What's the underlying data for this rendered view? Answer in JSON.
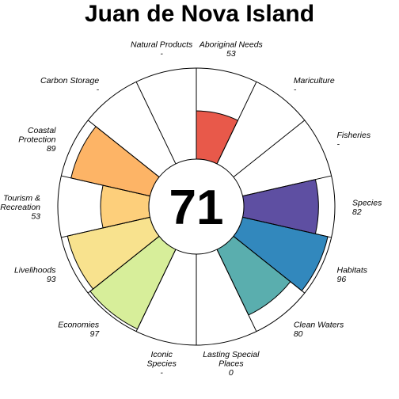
{
  "chart_data": {
    "type": "flower",
    "title": "Juan de Nova Island",
    "center_value": "71",
    "max_value": 100,
    "petals": [
      {
        "label": [
          "Natural Products"
        ],
        "value": null,
        "display": "-",
        "color": "#ffffff"
      },
      {
        "label": [
          "Aboriginal Needs"
        ],
        "value": 53,
        "display": "53",
        "color": "#e8594a"
      },
      {
        "label": [
          "Mariculture"
        ],
        "value": null,
        "display": "-",
        "color": "#ffffff"
      },
      {
        "label": [
          "Fisheries"
        ],
        "value": null,
        "display": "-",
        "color": "#ffffff"
      },
      {
        "label": [
          "Species"
        ],
        "value": 82,
        "display": "82",
        "color": "#5e4fa2"
      },
      {
        "label": [
          "Habitats"
        ],
        "value": 96,
        "display": "96",
        "color": "#3288bd"
      },
      {
        "label": [
          "Clean Waters"
        ],
        "value": 80,
        "display": "80",
        "color": "#5aaeae"
      },
      {
        "label": [
          "Lasting Special",
          "Places"
        ],
        "value": 0,
        "display": "0",
        "color": "#ffffff"
      },
      {
        "label": [
          "Iconic",
          "Species"
        ],
        "value": null,
        "display": "-",
        "color": "#ffffff"
      },
      {
        "label": [
          "Economies"
        ],
        "value": 97,
        "display": "97",
        "color": "#d7ee9a"
      },
      {
        "label": [
          "Livelihoods"
        ],
        "value": 93,
        "display": "93",
        "color": "#f8e28e"
      },
      {
        "label": [
          "Tourism &",
          "Recreation"
        ],
        "value": 53,
        "display": "53",
        "color": "#fdcf7b"
      },
      {
        "label": [
          "Coastal",
          "Protection"
        ],
        "value": 89,
        "display": "89",
        "color": "#fdb466"
      },
      {
        "label": [
          "Carbon Storage"
        ],
        "value": null,
        "display": "-",
        "color": "#ffffff"
      }
    ]
  }
}
